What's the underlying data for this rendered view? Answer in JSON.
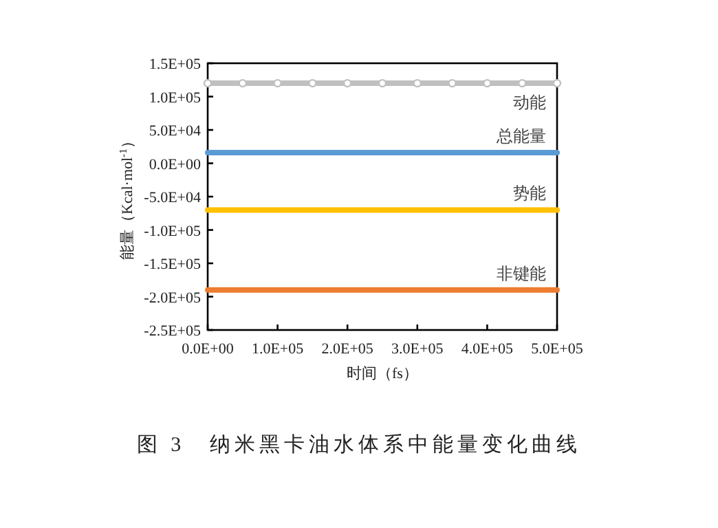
{
  "chart_data": {
    "type": "line",
    "ylabel": "能量（Kcal·mol$^{-1}$）",
    "xlabel": "时间（fs）",
    "annotations": [
      "图 3　纳米黑卡油水体系中能量变化曲线"
    ],
    "x": [
      0,
      50000,
      100000,
      150000,
      200000,
      250000,
      300000,
      350000,
      400000,
      450000,
      500000
    ],
    "series": [
      {
        "name": "动能",
        "color": "#c0c0c0",
        "marker": "circle",
        "values": [
          120000,
          120000,
          120000,
          120000,
          120000,
          120000,
          120000,
          120000,
          120000,
          120000,
          120000
        ]
      },
      {
        "name": "总能量",
        "color": "#5b9bd5",
        "marker": "none",
        "values": [
          16000,
          16000,
          16000,
          16000,
          16000,
          16000,
          16000,
          16000,
          16000,
          16000,
          16000
        ]
      },
      {
        "name": "势能",
        "color": "#ffc000",
        "marker": "none",
        "values": [
          -70000,
          -70000,
          -70000,
          -70000,
          -70000,
          -70000,
          -70000,
          -70000,
          -70000,
          -70000,
          -70000
        ]
      },
      {
        "name": "非键能",
        "color": "#ed7d31",
        "marker": "none",
        "values": [
          -190000,
          -190000,
          -190000,
          -190000,
          -190000,
          -190000,
          -190000,
          -190000,
          -190000,
          -190000,
          -190000
        ]
      }
    ],
    "xlim": [
      0,
      500000
    ],
    "xticks": [
      {
        "value": 0,
        "label": "0.0E+00"
      },
      {
        "value": 100000,
        "label": "1.0E+05"
      },
      {
        "value": 200000,
        "label": "2.0E+05"
      },
      {
        "value": 300000,
        "label": "3.0E+05"
      },
      {
        "value": 400000,
        "label": "4.0E+05"
      },
      {
        "value": 500000,
        "label": "5.0E+05"
      }
    ],
    "ylim": [
      -250000,
      150000
    ],
    "yticks": [
      {
        "value": -250000,
        "label": "-2.5E+05"
      },
      {
        "value": -200000,
        "label": "-2.0E+05"
      },
      {
        "value": -150000,
        "label": "-1.5E+05"
      },
      {
        "value": -100000,
        "label": "-1.0E+05"
      },
      {
        "value": -50000,
        "label": "-5.0E+04"
      },
      {
        "value": 0,
        "label": "0.0E+00"
      },
      {
        "value": 50000,
        "label": "5.0E+04"
      },
      {
        "value": 100000,
        "label": "1.0E+05"
      },
      {
        "value": 150000,
        "label": "1.5E+05"
      }
    ],
    "grid": false
  }
}
